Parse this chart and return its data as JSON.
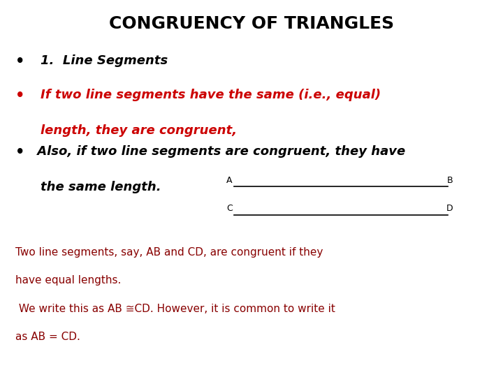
{
  "title": "CONGRUENCY OF TRIANGLES",
  "title_fontsize": 18,
  "title_color": "#000000",
  "title_weight": "bold",
  "bg_color": "#ffffff",
  "bullet1_text": "1.  Line Segments",
  "bullet1_color": "#000000",
  "bullet1_style": "italic",
  "bullet1_weight": "bold",
  "bullet2_line1": "If two line segments have the same (i.e., equal)",
  "bullet2_line2": "length, they are congruent,",
  "bullet2_color": "#cc0000",
  "bullet2_style": "italic",
  "bullet2_weight": "bold",
  "bullet3_line1": " Also, if two line segments are congruent, they have",
  "bullet3_line2": "the same length.",
  "bullet3_color": "#000000",
  "bullet3_style": "italic",
  "bullet3_weight": "bold",
  "seg_AB_label_A": "A",
  "seg_AB_label_B": "B",
  "seg_CD_label_C": "C",
  "seg_CD_label_D": "D",
  "seg_label_color": "#000000",
  "seg_label_fontsize": 9,
  "seg_color": "#000000",
  "para_line1": "Two line segments, say, AB and CD, are congruent if they",
  "para_line2": "have equal lengths.",
  "para_line3": " We write this as AB ≅CD. However, it is common to write it",
  "para_line4": "as AB = CD.",
  "para_color": "#880000",
  "para_fontsize": 11,
  "bullet_fontsize": 13,
  "bullet_dot_fontsize": 15
}
